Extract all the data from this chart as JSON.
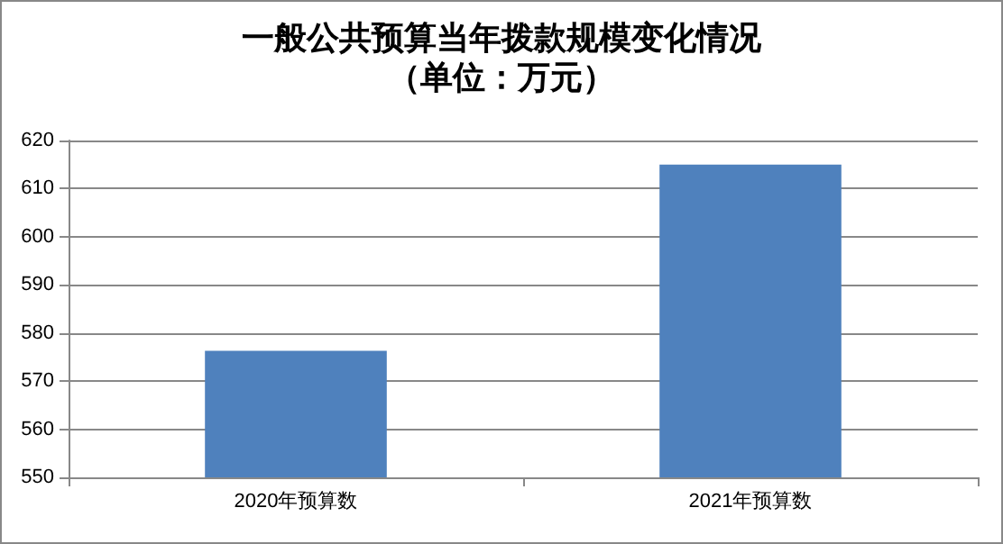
{
  "chart_data": {
    "type": "bar",
    "title": "一般公共预算当年拨款规模变化情况",
    "subtitle": "（单位：万元）",
    "categories": [
      "2020年预算数",
      "2021年预算数"
    ],
    "values": [
      576.3,
      615
    ],
    "color": "#4f81bd",
    "ylim": [
      550,
      620
    ],
    "yticks": [
      550,
      560,
      570,
      580,
      590,
      600,
      610,
      620
    ],
    "grid": "y"
  }
}
